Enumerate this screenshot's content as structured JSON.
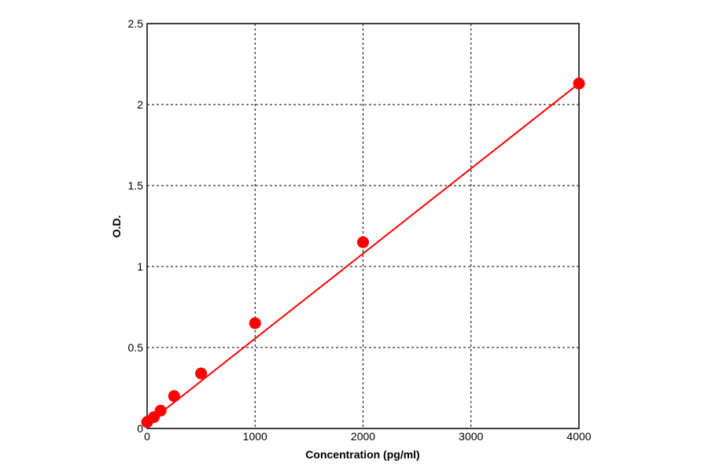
{
  "chart_data": {
    "type": "scatter",
    "xlabel": "Concentration (pg/ml)",
    "ylabel": "O.D.",
    "xlim": [
      0,
      4000
    ],
    "ylim": [
      0,
      2.5
    ],
    "xticks": [
      "0",
      "1000",
      "2000",
      "3000",
      "4000"
    ],
    "yticks": [
      "0",
      "0.5",
      "1",
      "1.5",
      "2",
      "2.5"
    ],
    "grid": true,
    "color": "#ff0000",
    "points": [
      {
        "x": 0,
        "y": 0.04
      },
      {
        "x": 62.5,
        "y": 0.07
      },
      {
        "x": 125,
        "y": 0.11
      },
      {
        "x": 250,
        "y": 0.2
      },
      {
        "x": 500,
        "y": 0.34
      },
      {
        "x": 1000,
        "y": 0.65
      },
      {
        "x": 2000,
        "y": 1.15
      },
      {
        "x": 4000,
        "y": 2.13
      }
    ],
    "fit_line": {
      "x": [
        0,
        4000
      ],
      "y": [
        0.03,
        2.13
      ]
    }
  }
}
